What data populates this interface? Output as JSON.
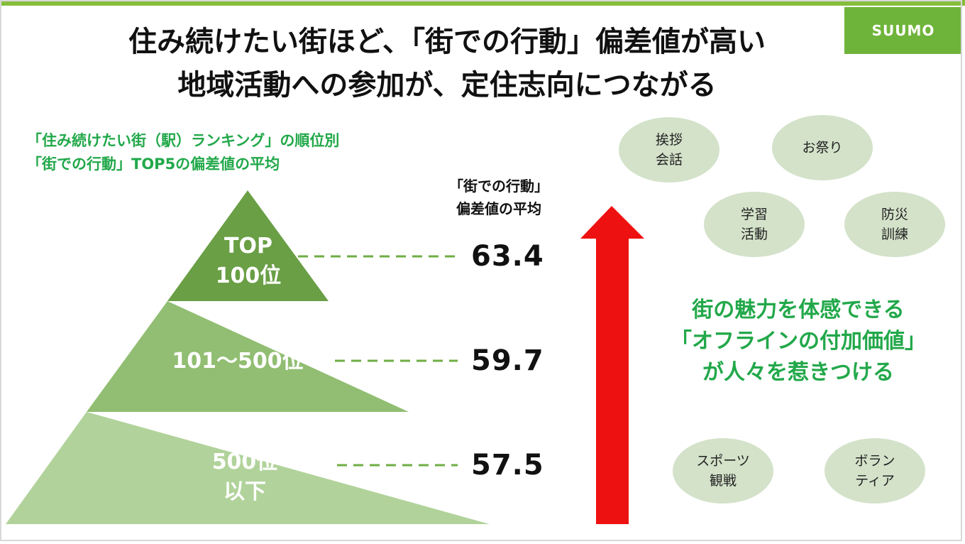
{
  "header": {
    "title_line1": "住み続けたい街ほど、「街での行動」偏差値が高い",
    "title_line2": "地域活動への参加が、定住志向につながる",
    "logo": "SUUMO"
  },
  "colors": {
    "accent_green": "#22a84a",
    "bar_green": "#86bd3d",
    "tier_top": "#6a9f45",
    "tier_mid": "#91be72",
    "tier_bottom": "#b1d39b",
    "arrow_red": "#ee1111",
    "bubble_fill": "#d3e2c9"
  },
  "chart_data": {
    "type": "pyramid",
    "subtitle_line1": "「住み続けたい街（駅）ランキング」の順位別",
    "subtitle_line2": "「街での行動」TOP5の偏差値の平均",
    "value_header_line1": "「街での行動」",
    "value_header_line2": "偏差値の平均",
    "tiers": [
      {
        "label_line1": "TOP",
        "label_line2": "100位",
        "value": "63.4"
      },
      {
        "label_line1": "101〜500位",
        "label_line2": "",
        "value": "59.7"
      },
      {
        "label_line1": "500位",
        "label_line2": "以下",
        "value": "57.5"
      }
    ]
  },
  "message": {
    "line1": "街の魅力を体感できる",
    "line2": "「オフラインの付加価値」",
    "line3": "が人々を惹きつける"
  },
  "activities": [
    {
      "line1": "挨拶",
      "line2": "会話"
    },
    {
      "line1": "お祭り",
      "line2": ""
    },
    {
      "line1": "学習",
      "line2": "活動"
    },
    {
      "line1": "防災",
      "line2": "訓練"
    },
    {
      "line1": "スポーツ",
      "line2": "観戦"
    },
    {
      "line1": "ボラン",
      "line2": "ティア"
    }
  ]
}
